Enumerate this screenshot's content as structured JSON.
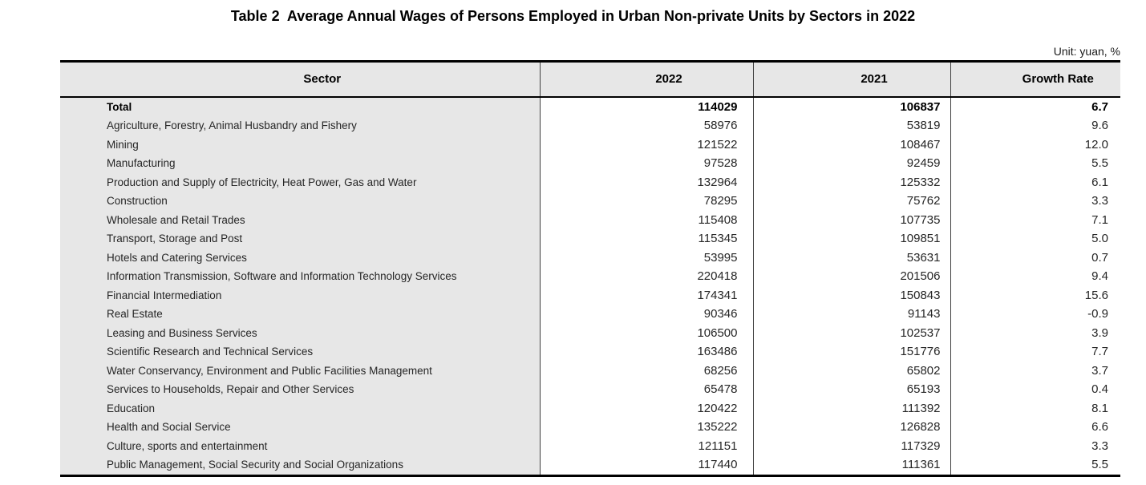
{
  "title": "Table 2  Average Annual Wages of Persons Employed in Urban Non-private Units by Sectors in 2022",
  "unit_note": "Unit: yuan, %",
  "colors": {
    "header_bg": "#e7e7e7",
    "sector_column_bg": "#e7e7e7",
    "rule": "#000000",
    "divider": "#3f3f3f"
  },
  "table": {
    "columns": [
      "Sector",
      "2022",
      "2021",
      "Growth Rate"
    ],
    "rows": [
      {
        "sector": "Total",
        "y2022": "114029",
        "y2021": "106837",
        "growth": "6.7",
        "bold": true
      },
      {
        "sector": "Agriculture, Forestry, Animal Husbandry and Fishery",
        "y2022": "58976",
        "y2021": "53819",
        "growth": "9.6",
        "bold": false
      },
      {
        "sector": "Mining",
        "y2022": "121522",
        "y2021": "108467",
        "growth": "12.0",
        "bold": false
      },
      {
        "sector": "Manufacturing",
        "y2022": "97528",
        "y2021": "92459",
        "growth": "5.5",
        "bold": false
      },
      {
        "sector": "Production and Supply of Electricity, Heat Power, Gas and Water",
        "y2022": "132964",
        "y2021": "125332",
        "growth": "6.1",
        "bold": false
      },
      {
        "sector": "Construction",
        "y2022": "78295",
        "y2021": "75762",
        "growth": "3.3",
        "bold": false
      },
      {
        "sector": "Wholesale and Retail Trades",
        "y2022": "115408",
        "y2021": "107735",
        "growth": "7.1",
        "bold": false
      },
      {
        "sector": "Transport, Storage and Post",
        "y2022": "115345",
        "y2021": "109851",
        "growth": "5.0",
        "bold": false
      },
      {
        "sector": "Hotels and Catering Services",
        "y2022": "53995",
        "y2021": "53631",
        "growth": "0.7",
        "bold": false
      },
      {
        "sector": "Information Transmission, Software and Information Technology Services",
        "y2022": "220418",
        "y2021": "201506",
        "growth": "9.4",
        "bold": false
      },
      {
        "sector": "Financial Intermediation",
        "y2022": "174341",
        "y2021": "150843",
        "growth": "15.6",
        "bold": false
      },
      {
        "sector": "Real Estate",
        "y2022": "90346",
        "y2021": "91143",
        "growth": "-0.9",
        "bold": false
      },
      {
        "sector": "Leasing and Business Services",
        "y2022": "106500",
        "y2021": "102537",
        "growth": "3.9",
        "bold": false
      },
      {
        "sector": "Scientific Research and Technical Services",
        "y2022": "163486",
        "y2021": "151776",
        "growth": "7.7",
        "bold": false
      },
      {
        "sector": "Water Conservancy, Environment and Public Facilities Management",
        "y2022": "68256",
        "y2021": "65802",
        "growth": "3.7",
        "bold": false
      },
      {
        "sector": "Services to Households, Repair and Other Services",
        "y2022": "65478",
        "y2021": "65193",
        "growth": "0.4",
        "bold": false
      },
      {
        "sector": "Education",
        "y2022": "120422",
        "y2021": "111392",
        "growth": "8.1",
        "bold": false
      },
      {
        "sector": "Health and Social Service",
        "y2022": "135222",
        "y2021": "126828",
        "growth": "6.6",
        "bold": false
      },
      {
        "sector": "Culture, sports and entertainment",
        "y2022": "121151",
        "y2021": "117329",
        "growth": "3.3",
        "bold": false
      },
      {
        "sector": "Public Management, Social Security and Social Organizations",
        "y2022": "117440",
        "y2021": "111361",
        "growth": "5.5",
        "bold": false
      }
    ]
  }
}
